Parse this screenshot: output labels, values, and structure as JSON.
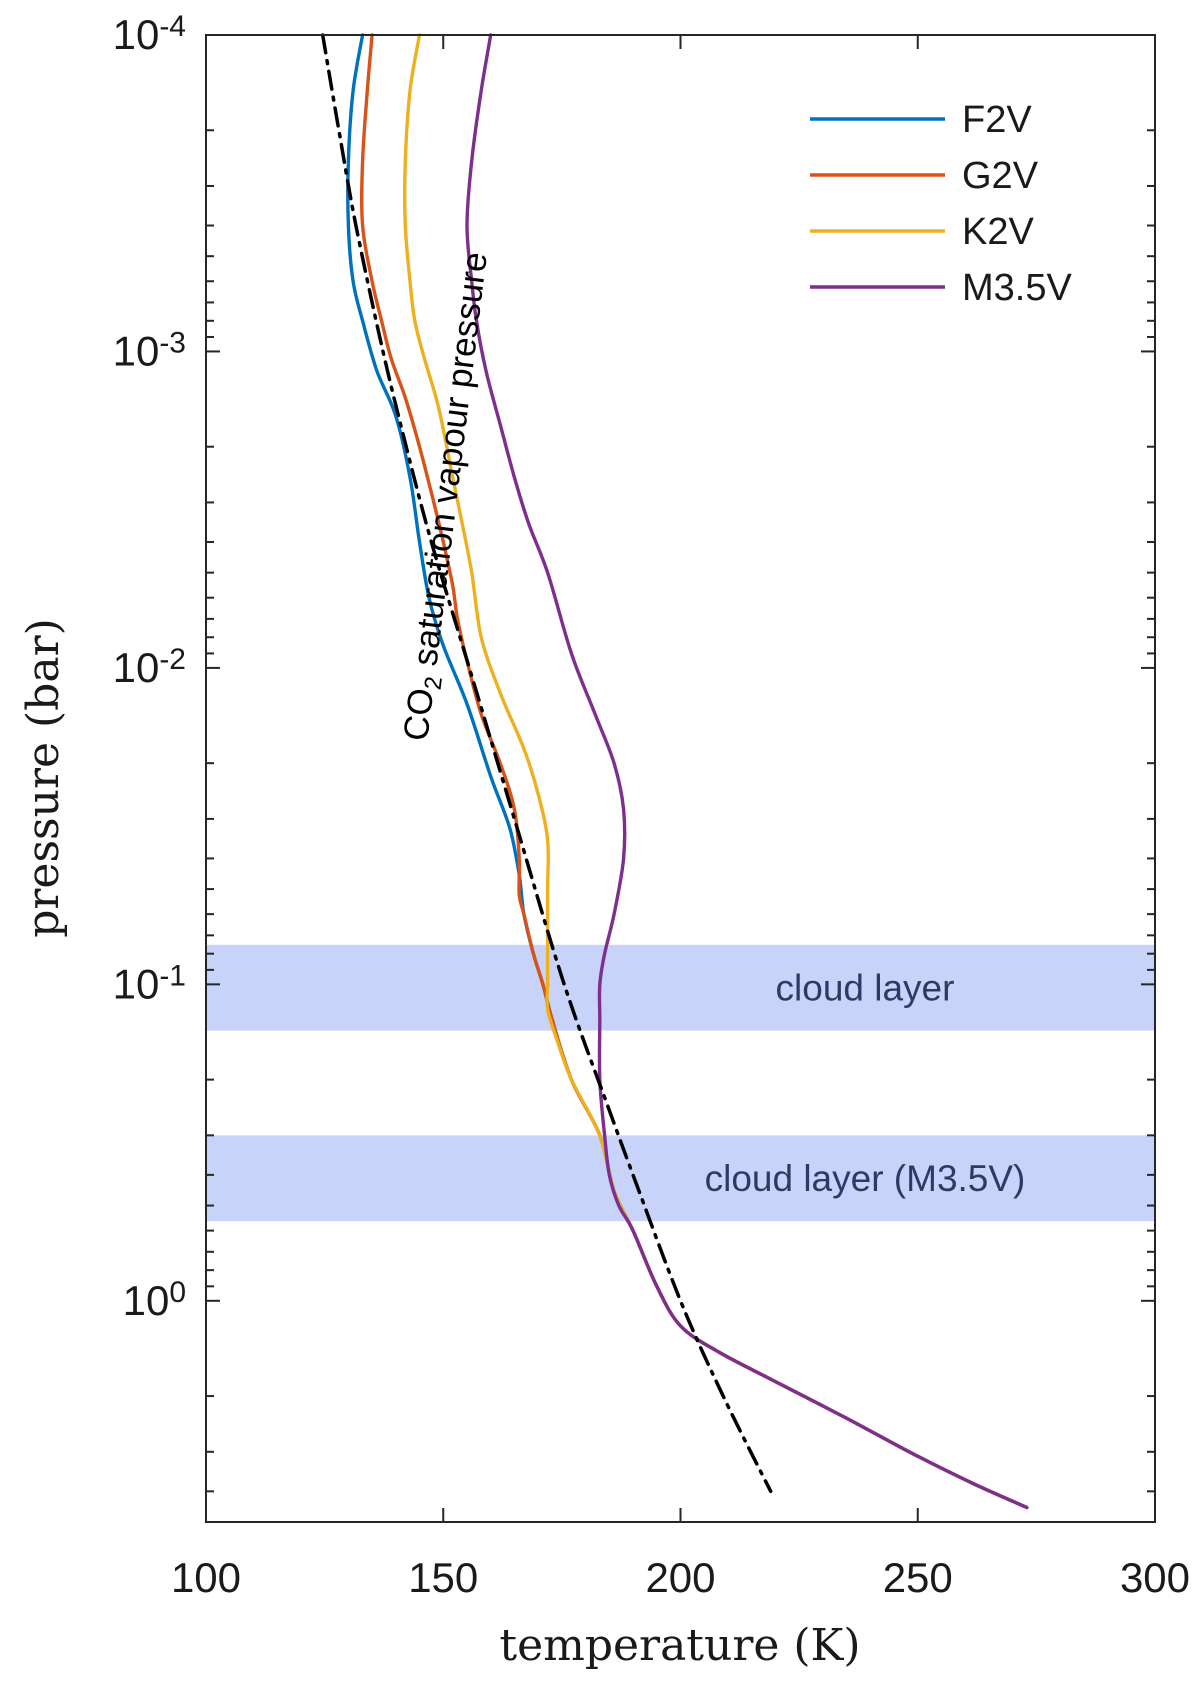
{
  "chart_data": {
    "type": "line",
    "title": "",
    "xlabel": "temperature (K)",
    "ylabel": "pressure (bar)",
    "xlim": [
      100,
      300
    ],
    "ylim": [
      0.0001,
      5
    ],
    "yscale": "log",
    "y_reversed": true,
    "x_ticks": [
      100,
      150,
      200,
      250,
      300
    ],
    "x_tick_labels": [
      "100",
      "150",
      "200",
      "250",
      "300"
    ],
    "y_ticks": [
      0.0001,
      0.001,
      0.01,
      0.1,
      1
    ],
    "y_tick_labels": [
      {
        "base": "10",
        "exp": "-4"
      },
      {
        "base": "10",
        "exp": "-3"
      },
      {
        "base": "10",
        "exp": "-2"
      },
      {
        "base": "10",
        "exp": "-1"
      },
      {
        "base": "10",
        "exp": "0"
      }
    ],
    "legend_position": "top-right",
    "series": [
      {
        "name": "F2V",
        "color": "#0072bd",
        "style": "solid",
        "points": [
          [
            133,
            0.0001
          ],
          [
            131,
            0.00015
          ],
          [
            130,
            0.00025
          ],
          [
            130,
            0.0004
          ],
          [
            131,
            0.0006
          ],
          [
            133,
            0.0008
          ],
          [
            136,
            0.00115
          ],
          [
            140,
            0.0016
          ],
          [
            143,
            0.0025
          ],
          [
            145,
            0.004
          ],
          [
            147,
            0.006
          ],
          [
            150,
            0.0085
          ],
          [
            155,
            0.013
          ],
          [
            160,
            0.022
          ],
          [
            164,
            0.032
          ],
          [
            166,
            0.045
          ],
          [
            167,
            0.06
          ],
          [
            169,
            0.08
          ],
          [
            171,
            0.1
          ],
          [
            173,
            0.13
          ],
          [
            177,
            0.2
          ],
          [
            183,
            0.3
          ],
          [
            186,
            0.45
          ],
          [
            190,
            0.6
          ],
          [
            195,
            0.9
          ],
          [
            200,
            1.2
          ],
          [
            208,
            1.45
          ],
          [
            220,
            1.8
          ],
          [
            235,
            2.35
          ],
          [
            250,
            3.1
          ],
          [
            262,
            3.8
          ],
          [
            273,
            4.5
          ]
        ]
      },
      {
        "name": "G2V",
        "color": "#d95319",
        "style": "solid",
        "points": [
          [
            135,
            0.0001
          ],
          [
            134,
            0.00015
          ],
          [
            133,
            0.00025
          ],
          [
            133,
            0.0004
          ],
          [
            135,
            0.0006
          ],
          [
            137,
            0.0008
          ],
          [
            139,
            0.00105
          ],
          [
            142,
            0.0014
          ],
          [
            145,
            0.002
          ],
          [
            148,
            0.003
          ],
          [
            150,
            0.004
          ],
          [
            152,
            0.0055
          ],
          [
            153,
            0.007
          ],
          [
            155,
            0.0095
          ],
          [
            158,
            0.014
          ],
          [
            162,
            0.02
          ],
          [
            165,
            0.028
          ],
          [
            166,
            0.04
          ],
          [
            166,
            0.052
          ],
          [
            167,
            0.06
          ],
          [
            169,
            0.08
          ],
          [
            171,
            0.1
          ],
          [
            173,
            0.13
          ],
          [
            177,
            0.2
          ],
          [
            183,
            0.3
          ],
          [
            186,
            0.45
          ],
          [
            190,
            0.6
          ],
          [
            195,
            0.9
          ],
          [
            200,
            1.2
          ],
          [
            208,
            1.45
          ],
          [
            220,
            1.8
          ],
          [
            235,
            2.35
          ],
          [
            250,
            3.1
          ],
          [
            262,
            3.8
          ],
          [
            273,
            4.5
          ]
        ]
      },
      {
        "name": "K2V",
        "color": "#edb120",
        "style": "solid",
        "points": [
          [
            145,
            0.0001
          ],
          [
            143,
            0.00015
          ],
          [
            142,
            0.00025
          ],
          [
            142,
            0.0004
          ],
          [
            143,
            0.0006
          ],
          [
            144,
            0.0008
          ],
          [
            146,
            0.00105
          ],
          [
            149,
            0.0015
          ],
          [
            152,
            0.0025
          ],
          [
            154,
            0.0035
          ],
          [
            156,
            0.005
          ],
          [
            158,
            0.008
          ],
          [
            162,
            0.012
          ],
          [
            167,
            0.018
          ],
          [
            170,
            0.025
          ],
          [
            172,
            0.035
          ],
          [
            172,
            0.05
          ],
          [
            172,
            0.07
          ],
          [
            172,
            0.085
          ],
          [
            172,
            0.1
          ],
          [
            172,
            0.12
          ],
          [
            174,
            0.15
          ],
          [
            177,
            0.2
          ],
          [
            183,
            0.3
          ],
          [
            186,
            0.45
          ],
          [
            190,
            0.6
          ],
          [
            195,
            0.9
          ],
          [
            200,
            1.2
          ],
          [
            208,
            1.45
          ],
          [
            220,
            1.8
          ],
          [
            235,
            2.35
          ],
          [
            250,
            3.1
          ],
          [
            262,
            3.8
          ],
          [
            273,
            4.5
          ]
        ]
      },
      {
        "name": "M3.5V",
        "color": "#7e2f8e",
        "style": "solid",
        "points": [
          [
            160,
            0.0001
          ],
          [
            158,
            0.00015
          ],
          [
            156,
            0.00025
          ],
          [
            155,
            0.0004
          ],
          [
            156,
            0.0006
          ],
          [
            157,
            0.0008
          ],
          [
            159,
            0.00115
          ],
          [
            162,
            0.0017
          ],
          [
            165,
            0.0025
          ],
          [
            168,
            0.0035
          ],
          [
            172,
            0.005
          ],
          [
            177,
            0.009
          ],
          [
            182,
            0.014
          ],
          [
            186,
            0.02
          ],
          [
            188,
            0.028
          ],
          [
            188,
            0.04
          ],
          [
            186,
            0.06
          ],
          [
            184,
            0.08
          ],
          [
            183,
            0.1
          ],
          [
            183,
            0.13
          ],
          [
            183,
            0.2
          ],
          [
            184,
            0.3
          ],
          [
            185,
            0.4
          ],
          [
            187,
            0.5
          ],
          [
            190,
            0.6
          ],
          [
            195,
            0.9
          ],
          [
            200,
            1.2
          ],
          [
            208,
            1.45
          ],
          [
            220,
            1.8
          ],
          [
            235,
            2.35
          ],
          [
            250,
            3.1
          ],
          [
            262,
            3.8
          ],
          [
            273,
            4.5
          ]
        ]
      },
      {
        "name": "CO2 saturation vapour pressure",
        "color": "#000000",
        "style": "dashdot",
        "in_legend": false,
        "points": [
          [
            124.6,
            0.0001
          ],
          [
            128,
            0.0002
          ],
          [
            131.6,
            0.0004
          ],
          [
            137.3,
            0.001
          ],
          [
            142.2,
            0.002
          ],
          [
            147.5,
            0.004
          ],
          [
            155.5,
            0.01
          ],
          [
            165,
            0.03
          ],
          [
            175.5,
            0.1
          ],
          [
            185,
            0.25
          ],
          [
            190,
            0.4
          ],
          [
            200,
            1
          ],
          [
            209,
            2
          ],
          [
            219,
            4
          ]
        ]
      }
    ],
    "bands": [
      {
        "label": "cloud layer",
        "p_top": 0.075,
        "p_bottom": 0.14,
        "color": "#c8d3fa"
      },
      {
        "label": "cloud layer (M3.5V)",
        "p_top": 0.3,
        "p_bottom": 0.56,
        "color": "#c8d3fa"
      }
    ],
    "annotation": {
      "text_before": "CO",
      "subscript": "2",
      "text_after": " saturation vapour pressure"
    }
  }
}
